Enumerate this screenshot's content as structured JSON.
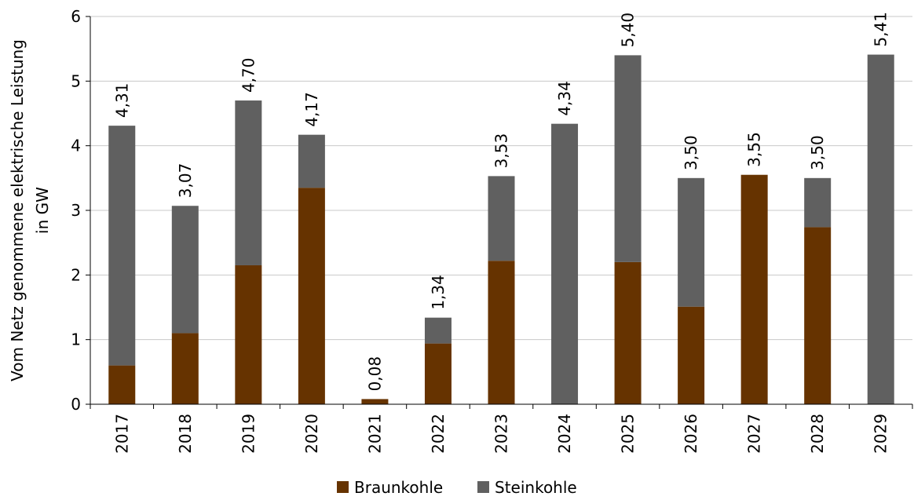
{
  "chart_data": {
    "type": "bar",
    "stacked": true,
    "categories": [
      "2017",
      "2018",
      "2019",
      "2020",
      "2021",
      "2022",
      "2023",
      "2024",
      "2025",
      "2026",
      "2027",
      "2028",
      "2029"
    ],
    "series": [
      {
        "name": "Braunkohle",
        "color": "#663300",
        "values": [
          0.6,
          1.1,
          2.15,
          3.35,
          0.08,
          0.94,
          2.22,
          0.0,
          2.2,
          1.51,
          3.55,
          2.74,
          0.0
        ]
      },
      {
        "name": "Steinkohle",
        "color": "#606060",
        "values": [
          3.71,
          1.97,
          2.55,
          0.82,
          0.0,
          0.4,
          1.31,
          4.34,
          3.2,
          1.99,
          0.0,
          0.76,
          5.41
        ]
      }
    ],
    "totals": [
      "4,31",
      "3,07",
      "4,70",
      "4,17",
      "0,08",
      "1,34",
      "3,53",
      "4,34",
      "5,40",
      "3,50",
      "3,55",
      "3,50",
      "5,41"
    ],
    "ylabel_lines": [
      "Vom Netz genommene elektrische Leistung",
      "in GW"
    ],
    "ylim": [
      0,
      6
    ],
    "yticks": [
      "0",
      "1",
      "2",
      "3",
      "4",
      "5",
      "6"
    ],
    "grid": true,
    "legend_position": "bottom"
  }
}
